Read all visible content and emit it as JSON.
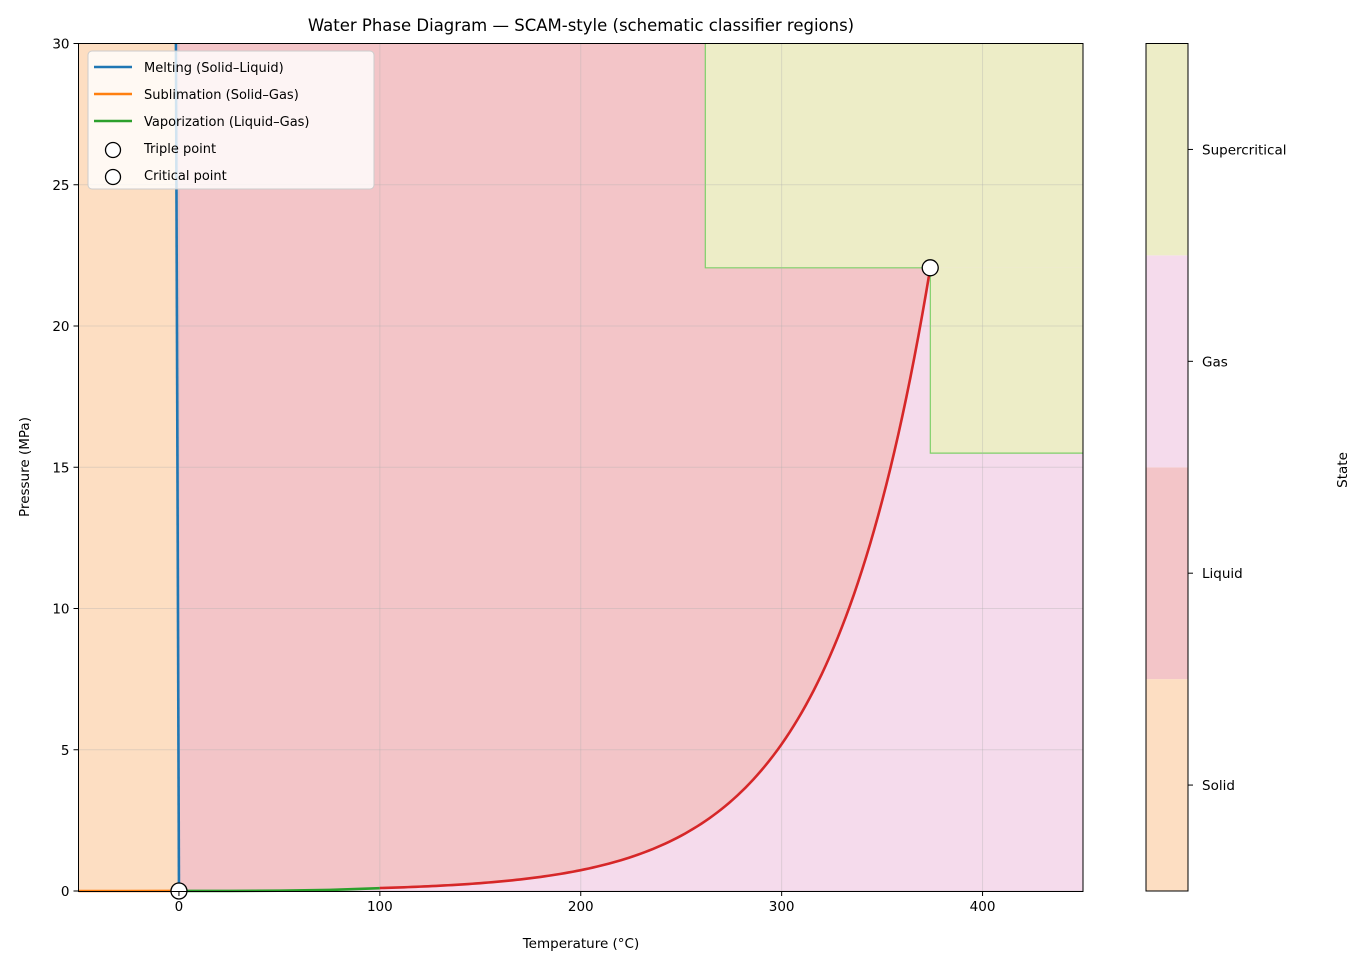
{
  "chart_data": {
    "type": "line",
    "title": "Water Phase Diagram — SCAM-style (schematic classifier regions)",
    "xlabel": "Temperature (°C)",
    "ylabel": "Pressure (MPa)",
    "xlim": [
      -50,
      450
    ],
    "ylim": [
      0,
      30
    ],
    "xticks": [
      0,
      100,
      200,
      300,
      400
    ],
    "yticks": [
      0,
      5,
      10,
      15,
      20,
      25,
      30
    ],
    "grid": true,
    "legend_position": "top-left",
    "series": [
      {
        "name": "Melting (Solid–Liquid)",
        "color": "#1f77b4",
        "x": [
          0.01,
          -1.5
        ],
        "y": [
          0.0006,
          30
        ]
      },
      {
        "name": "Sublimation (Solid–Gas)",
        "color": "#ff7f0e",
        "x": [
          -50,
          0.01
        ],
        "y": [
          4e-06,
          0.0006
        ]
      },
      {
        "name": "Vaporization (Liquid–Gas)",
        "color": "#2ca02c",
        "x": [
          0.01,
          25,
          50,
          75,
          100
        ],
        "y": [
          0.0006,
          0.003,
          0.012,
          0.039,
          0.101
        ]
      },
      {
        "name": "Vaporization (overlay)",
        "color": "#d62728",
        "x": [
          100,
          150,
          200,
          250,
          300,
          325,
          350,
          374
        ],
        "y": [
          0.101,
          0.48,
          0.74,
          2.0,
          5.2,
          8.5,
          14.0,
          22.06
        ]
      }
    ],
    "points": [
      {
        "name": "Triple point",
        "x": 0.01,
        "y": 0.000611
      },
      {
        "name": "Critical point",
        "x": 373.95,
        "y": 22.06
      }
    ],
    "regions": {
      "supercritical": [
        {
          "tmin": 262,
          "tmax": 450,
          "pmin": 22.06,
          "pmax": 30
        },
        {
          "tmin": 374,
          "tmax": 450,
          "pmin": 15.5,
          "pmax": 22.06
        }
      ]
    },
    "colorbar": {
      "label": "State",
      "ticks": [
        "Solid",
        "Liquid",
        "Gas",
        "Supercritical"
      ],
      "colors": [
        "#fddec2",
        "#f3c5c8",
        "#f5dbec",
        "#ededc7"
      ]
    }
  }
}
